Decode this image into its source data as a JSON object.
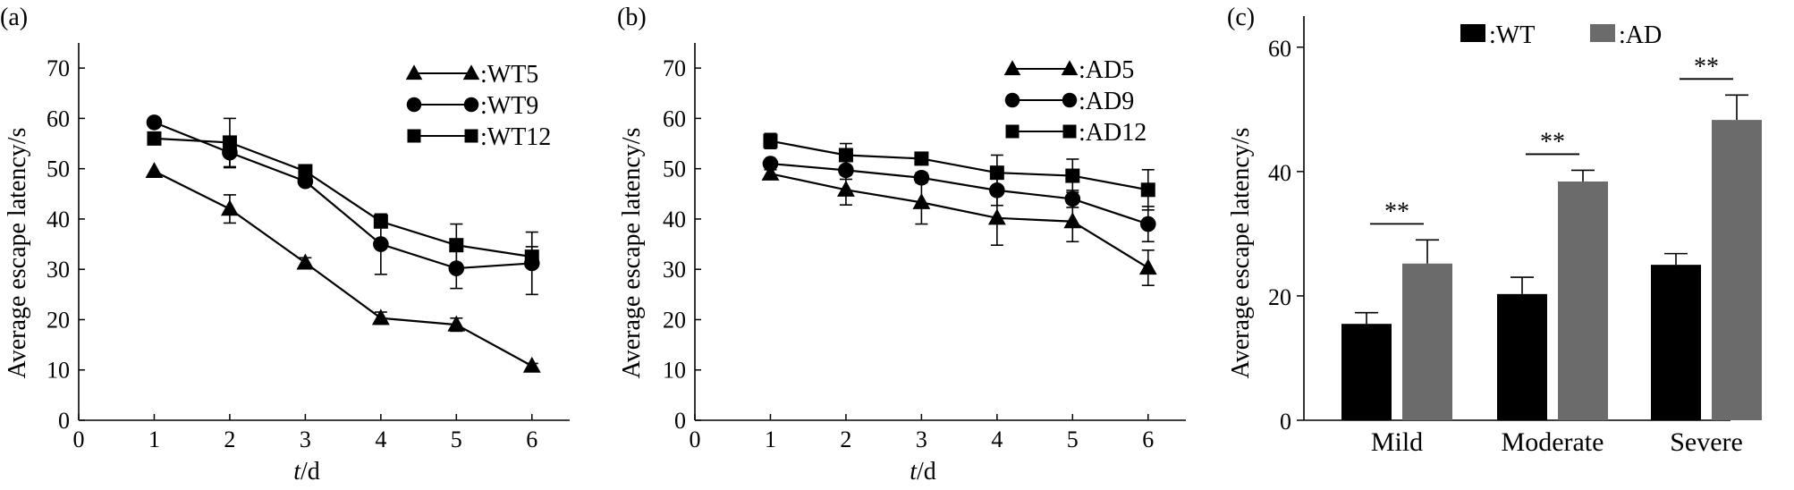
{
  "colors": {
    "axis": "#000000",
    "wt_bar": "#000000",
    "ad_bar": "#6b6b6b"
  },
  "panels": [
    {
      "label": "(a)",
      "chart_data": {
        "type": "line",
        "ylabel": "Average escape latency/s",
        "xlabel_italic": "t",
        "xlabel_rest": "/d",
        "xlim": [
          0,
          6.5
        ],
        "ylim": [
          0,
          75
        ],
        "xticks": [
          0,
          1,
          2,
          3,
          4,
          5,
          6
        ],
        "yticks": [
          0,
          10,
          20,
          30,
          40,
          50,
          60,
          70
        ],
        "x": [
          1,
          2,
          3,
          4,
          5,
          6
        ],
        "legend_position": "top-right",
        "series": [
          {
            "name": ":WT5",
            "marker": "triangle",
            "values": [
              49.5,
              42,
              31.3,
              20.3,
              19,
              10.8
            ],
            "errors": [
              0,
              2.8,
              1,
              1.2,
              1.3,
              0.5
            ]
          },
          {
            "name": ":WT9",
            "marker": "circle",
            "values": [
              59.2,
              53.2,
              47.5,
              35,
              30.2,
              31.2
            ],
            "errors": [
              0,
              3,
              0.8,
              6,
              4,
              6.2
            ]
          },
          {
            "name": ":WT12",
            "marker": "square",
            "values": [
              56,
              55.2,
              49.5,
              39.5,
              34.8,
              32.5
            ],
            "errors": [
              0,
              4.8,
              0.8,
              1.2,
              4.2,
              2
            ]
          }
        ]
      }
    },
    {
      "label": "(b)",
      "chart_data": {
        "type": "line",
        "ylabel": "Average escape latency/s",
        "xlabel_italic": "t",
        "xlabel_rest": "/d",
        "xlim": [
          0,
          6.5
        ],
        "ylim": [
          0,
          75
        ],
        "xticks": [
          0,
          1,
          2,
          3,
          4,
          5,
          6
        ],
        "yticks": [
          0,
          10,
          20,
          30,
          40,
          50,
          60,
          70
        ],
        "x": [
          1,
          2,
          3,
          4,
          5,
          6
        ],
        "legend_position": "top-right",
        "series": [
          {
            "name": ":AD5",
            "marker": "triangle",
            "values": [
              49,
              45.8,
              43.3,
              40.2,
              39.5,
              30.3
            ],
            "errors": [
              0.8,
              3,
              4.3,
              5.4,
              4,
              3.5
            ]
          },
          {
            "name": ":AD9",
            "marker": "circle",
            "values": [
              51,
              49.7,
              48.2,
              45.7,
              44,
              39
            ],
            "errors": [
              0.7,
              1.8,
              1,
              3,
              1.7,
              3.5
            ]
          },
          {
            "name": ":AD12",
            "marker": "square",
            "values": [
              55.5,
              52.7,
              52,
              49.2,
              48.6,
              45.8
            ],
            "errors": [
              1.5,
              2.3,
              1.2,
              3.5,
              3.3,
              4
            ]
          }
        ]
      }
    },
    {
      "label": "(c)",
      "chart_data": {
        "type": "bar",
        "ylabel": "Average escape latency/s",
        "categories": [
          "Mild",
          "Moderate",
          "Severe"
        ],
        "ylim": [
          0,
          65
        ],
        "yticks": [
          0,
          20,
          40,
          60
        ],
        "legend_position": "top",
        "significance": "**",
        "series": [
          {
            "name": ":WT",
            "values": [
              15.5,
              20.3,
              25
            ],
            "errors": [
              1.8,
              2.7,
              1.8
            ]
          },
          {
            "name": ":AD",
            "values": [
              25.2,
              38.4,
              48.3
            ],
            "errors": [
              3.8,
              1.8,
              4
            ]
          }
        ]
      }
    }
  ]
}
